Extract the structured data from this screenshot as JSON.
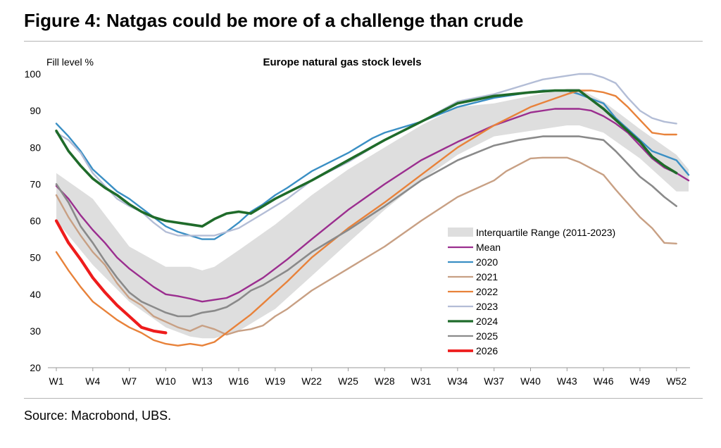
{
  "figure_title": "Figure 4: Natgas could be more of a challenge than crude",
  "source": "Source: Macrobond, UBS.",
  "chart_data": {
    "type": "line",
    "title": "Europe natural gas stock levels",
    "ylabel": "Fill level %",
    "xlabel": "",
    "ylim": [
      20,
      100
    ],
    "yticks": [
      20,
      30,
      40,
      50,
      60,
      70,
      80,
      90,
      100
    ],
    "xlim": [
      1,
      53
    ],
    "xtick_positions": [
      1,
      4,
      7,
      10,
      13,
      16,
      19,
      22,
      25,
      28,
      31,
      34,
      37,
      40,
      43,
      46,
      49,
      52
    ],
    "xtick_labels": [
      "W1",
      "W4",
      "W7",
      "W10",
      "W13",
      "W16",
      "W19",
      "W22",
      "W25",
      "W28",
      "W31",
      "W34",
      "W37",
      "W40",
      "W43",
      "W46",
      "W49",
      "W52"
    ],
    "band": {
      "name": "Interquartile Range (2011-2023)",
      "color": "#dedede",
      "x": [
        1,
        4,
        7,
        10,
        12,
        13,
        14,
        16,
        19,
        22,
        25,
        28,
        31,
        34,
        37,
        40,
        43,
        44,
        46,
        49,
        52,
        53
      ],
      "lower": [
        60,
        48,
        38,
        31,
        28.5,
        28,
        28,
        30,
        36,
        45,
        54,
        63,
        71,
        78,
        83,
        84.5,
        86,
        86,
        84,
        77,
        68,
        68
      ],
      "upper": [
        73,
        66,
        53,
        47.5,
        47.5,
        46.5,
        47.5,
        52,
        59,
        67,
        74,
        80,
        86,
        91,
        92,
        94,
        96,
        96,
        92.5,
        85,
        78,
        74
      ]
    },
    "series": [
      {
        "name": "Mean",
        "color": "#9b2e8f",
        "width": 2.4,
        "x": [
          1,
          2,
          3,
          4,
          5,
          6,
          7,
          8,
          9,
          10,
          11,
          12,
          13,
          14,
          15,
          16,
          17,
          18,
          19,
          20,
          22,
          25,
          28,
          31,
          34,
          37,
          40,
          42,
          43,
          44,
          45,
          46,
          47,
          48,
          49,
          50,
          51,
          52,
          53
        ],
        "values": [
          69.5,
          66,
          61.5,
          57.5,
          54,
          50,
          47,
          44.5,
          42,
          40,
          39.5,
          38.8,
          38,
          38.5,
          39,
          40.5,
          42.5,
          44.5,
          47,
          49.5,
          55,
          63,
          70,
          76.5,
          81.5,
          86,
          89.5,
          90.5,
          90.5,
          90.5,
          90,
          88.5,
          86.5,
          84,
          80.5,
          77,
          74.5,
          73,
          71
        ]
      },
      {
        "name": "2020",
        "color": "#3a8fc4",
        "width": 2.4,
        "x": [
          1,
          2,
          3,
          4,
          5,
          6,
          7,
          8,
          9,
          10,
          11,
          12,
          13,
          14,
          15,
          16,
          17,
          18,
          19,
          20,
          22,
          25,
          27,
          28,
          31,
          34,
          37,
          40,
          41,
          43,
          44,
          46,
          47,
          49,
          50,
          52,
          53
        ],
        "values": [
          86.5,
          83,
          79,
          74,
          71,
          68,
          66,
          63.5,
          61,
          58.5,
          57,
          56,
          55,
          55,
          57,
          59.5,
          62.5,
          64.5,
          67,
          69,
          73.5,
          78.5,
          82.5,
          84,
          87,
          91,
          93.5,
          95,
          95.5,
          95.5,
          94.5,
          92,
          88,
          82,
          79,
          76.5,
          72.5
        ]
      },
      {
        "name": "2021",
        "color": "#c8a084",
        "width": 2.4,
        "x": [
          1,
          2,
          3,
          4,
          5,
          6,
          7,
          8,
          9,
          10,
          11,
          12,
          13,
          14,
          15,
          16,
          17,
          18,
          19,
          20,
          22,
          25,
          28,
          31,
          34,
          37,
          38,
          40,
          41,
          43,
          44,
          46,
          47,
          49,
          50,
          51,
          52
        ],
        "values": [
          67,
          61,
          56,
          51.5,
          48,
          43,
          39,
          37,
          34,
          32.5,
          31,
          30,
          31.5,
          30.5,
          29,
          30,
          30.5,
          31.5,
          34,
          36,
          41,
          47,
          53,
          60,
          66.5,
          71,
          73.5,
          77,
          77.2,
          77.2,
          76,
          72.5,
          68.5,
          61,
          58,
          54,
          53.8
        ]
      },
      {
        "name": "2022",
        "color": "#e8823a",
        "width": 2.4,
        "x": [
          1,
          2,
          3,
          4,
          5,
          6,
          7,
          8,
          9,
          10,
          11,
          12,
          13,
          14,
          15,
          16,
          17,
          18,
          19,
          20,
          22,
          25,
          28,
          31,
          34,
          37,
          40,
          43,
          44,
          45,
          46,
          47,
          48,
          49,
          50,
          51,
          52
        ],
        "values": [
          51.5,
          46.5,
          42,
          38,
          35.5,
          33,
          31,
          29.5,
          27.5,
          26.5,
          26,
          26.5,
          26,
          27,
          29.5,
          32,
          34.5,
          37.5,
          40.5,
          43.5,
          50,
          58,
          65,
          72.5,
          80,
          86,
          91,
          94.5,
          95.5,
          95.5,
          95,
          94,
          91,
          87.5,
          84,
          83.5,
          83.5
        ]
      },
      {
        "name": "2023",
        "color": "#b3bdd6",
        "width": 2.4,
        "x": [
          1,
          2,
          3,
          4,
          5,
          6,
          7,
          8,
          9,
          10,
          11,
          12,
          13,
          14,
          15,
          16,
          17,
          18,
          19,
          20,
          22,
          25,
          28,
          31,
          34,
          37,
          40,
          41,
          43,
          44,
          45,
          46,
          47,
          48,
          49,
          50,
          51,
          52
        ],
        "values": [
          84,
          82,
          78.5,
          73,
          69.5,
          66,
          64,
          62.5,
          59.5,
          57,
          56,
          56,
          56,
          56,
          57,
          58,
          60,
          62,
          64,
          66,
          71,
          76,
          82,
          87,
          92.5,
          94.5,
          97.5,
          98.5,
          99.5,
          100,
          100,
          99,
          97.5,
          93.5,
          90,
          88,
          87,
          86.5
        ]
      },
      {
        "name": "2024",
        "color": "#1f6b2a",
        "width": 3.6,
        "x": [
          1,
          2,
          3,
          4,
          5,
          6,
          7,
          8,
          9,
          10,
          11,
          12,
          13,
          14,
          15,
          16,
          17,
          19,
          22,
          25,
          28,
          31,
          34,
          37,
          40,
          42,
          43,
          44,
          45,
          46,
          47,
          48,
          49,
          50,
          51,
          52
        ],
        "values": [
          84.5,
          79,
          75,
          71.5,
          69,
          67,
          64.5,
          62.5,
          61,
          60,
          59.5,
          59,
          58.5,
          60.5,
          62,
          62.5,
          62,
          66,
          71,
          76.5,
          82,
          87,
          92,
          94,
          95,
          95.5,
          95.5,
          95.5,
          93,
          90.5,
          87.5,
          84.5,
          81.5,
          77.5,
          75,
          73
        ]
      },
      {
        "name": "2025",
        "color": "#8a8a8a",
        "width": 2.6,
        "x": [
          1,
          2,
          3,
          4,
          5,
          6,
          7,
          8,
          9,
          10,
          11,
          12,
          13,
          14,
          15,
          16,
          17,
          18,
          19,
          20,
          22,
          25,
          28,
          31,
          34,
          37,
          39,
          40,
          41,
          42,
          43,
          44,
          45,
          46,
          47,
          48,
          49,
          50,
          51,
          52
        ],
        "values": [
          70,
          65,
          58.5,
          54,
          49,
          44.5,
          40.5,
          38,
          36.5,
          35,
          34,
          34,
          35,
          35.5,
          36.5,
          38.5,
          41,
          42.5,
          44.5,
          46.5,
          51.5,
          57.5,
          64,
          71,
          76.5,
          80.5,
          82,
          82.5,
          83,
          83,
          83,
          83,
          82.5,
          82,
          79,
          75.5,
          72,
          69.5,
          66.5,
          64
        ]
      },
      {
        "name": "2026",
        "color": "#ee1c1c",
        "width": 4.2,
        "x": [
          1,
          2,
          3,
          4,
          5,
          6,
          7,
          8,
          9,
          10
        ],
        "values": [
          60,
          54,
          49.5,
          44.5,
          40.5,
          37,
          34,
          31,
          30,
          29.5
        ]
      }
    ],
    "legend_position": "right-center"
  }
}
